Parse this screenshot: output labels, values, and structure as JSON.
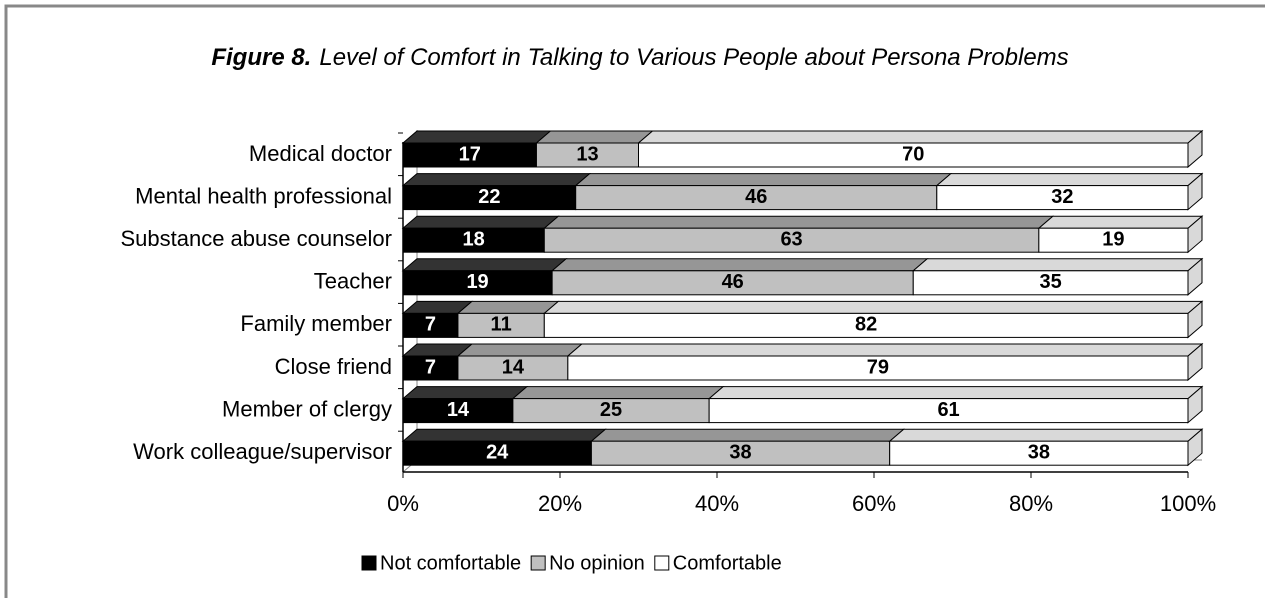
{
  "chart_data": {
    "type": "stacked_bar_horizontal_percent",
    "title_label": "Figure 8.",
    "title": "Level of Comfort in Talking to Various People about Persona Problems",
    "categories": [
      "Medical doctor",
      "Mental health professional",
      "Substance abuse counselor",
      "Teacher",
      "Family member",
      "Close friend",
      "Member of clergy",
      "Work colleague/supervisor"
    ],
    "series": [
      {
        "name": "Not comfortable",
        "color": "#000000",
        "values": [
          17,
          22,
          18,
          19,
          7,
          7,
          14,
          24
        ]
      },
      {
        "name": "No opinion",
        "color": "#c0c0c0",
        "values": [
          13,
          46,
          63,
          46,
          11,
          14,
          25,
          38
        ]
      },
      {
        "name": "Comfortable",
        "color": "#ffffff",
        "values": [
          70,
          32,
          19,
          35,
          82,
          79,
          61,
          38
        ]
      }
    ],
    "xlim": [
      0,
      100
    ],
    "xticks": [
      {
        "value": 0,
        "label": "0%"
      },
      {
        "value": 20,
        "label": "20%"
      },
      {
        "value": 40,
        "label": "40%"
      },
      {
        "value": 60,
        "label": "60%"
      },
      {
        "value": 80,
        "label": "80%"
      },
      {
        "value": 100,
        "label": "100%"
      }
    ],
    "legend": "bottom"
  }
}
